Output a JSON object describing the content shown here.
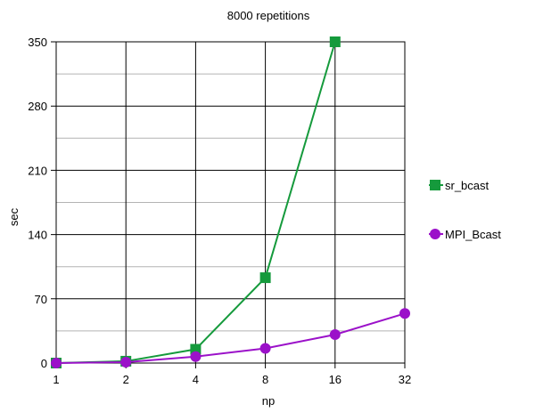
{
  "chart_data": {
    "type": "line",
    "title": "8000 repetitions",
    "xlabel": "np",
    "ylabel": "sec",
    "x": [
      "1",
      "2",
      "4",
      "8",
      "16",
      "32"
    ],
    "yticks": [
      "0",
      "70",
      "140",
      "210",
      "280",
      "350"
    ],
    "ylim": [
      0,
      350
    ],
    "grid": true,
    "legend_position": "right",
    "series": [
      {
        "name": "sr_bcast",
        "values": [
          0,
          2,
          15,
          93,
          350,
          null
        ],
        "color": "#159a3c",
        "marker": "square"
      },
      {
        "name": "MPI_Bcast",
        "values": [
          0,
          1,
          7,
          16,
          31,
          54
        ],
        "color": "#9b11c9",
        "marker": "circle"
      }
    ]
  }
}
